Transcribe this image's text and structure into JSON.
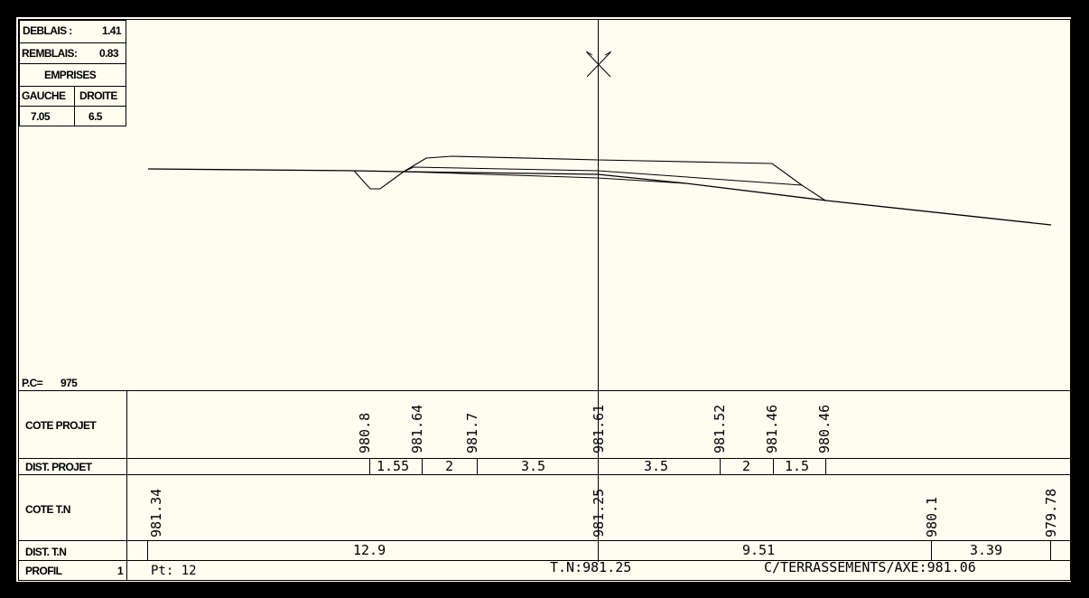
{
  "summary": {
    "deblais_label": "DEBLAIS :",
    "deblais_value": "1.41",
    "remblais_label": "REMBLAIS:",
    "remblais_value": "0.83",
    "emprises_label": "EMPRISES",
    "gauche_label": "GAUCHE",
    "droite_label": "DROITE",
    "gauche_value": "7.05",
    "droite_value": "6.5"
  },
  "plan_comparaison": {
    "label": "P.C=",
    "value": "975"
  },
  "rows": {
    "cote_projet": "COTE PROJET",
    "dist_projet": "DIST. PROJET",
    "cote_tn": "COTE T.N",
    "dist_tn": "DIST. T.N",
    "profil": "PROFIL",
    "profil_num": "1"
  },
  "cote_projet_values": [
    "980.8",
    "981.64",
    "981.7",
    "981.61",
    "981.52",
    "981.46",
    "980.46"
  ],
  "dist_projet_values": [
    "1.55",
    "2",
    "3.5",
    "3.5",
    "2",
    "1.5"
  ],
  "cote_tn_values": [
    "981.34",
    "981.25",
    "980.1",
    "979.78"
  ],
  "dist_tn_values": [
    "12.9",
    "9.51",
    "3.39"
  ],
  "footer": {
    "point": "Pt: 12",
    "tn": "T.N:981.25",
    "axe": "C/TERRASSEMENTS/AXE:981.06"
  },
  "colors": {
    "paper": "#fffdf0",
    "ink": "#000000",
    "frame": "#000000"
  }
}
